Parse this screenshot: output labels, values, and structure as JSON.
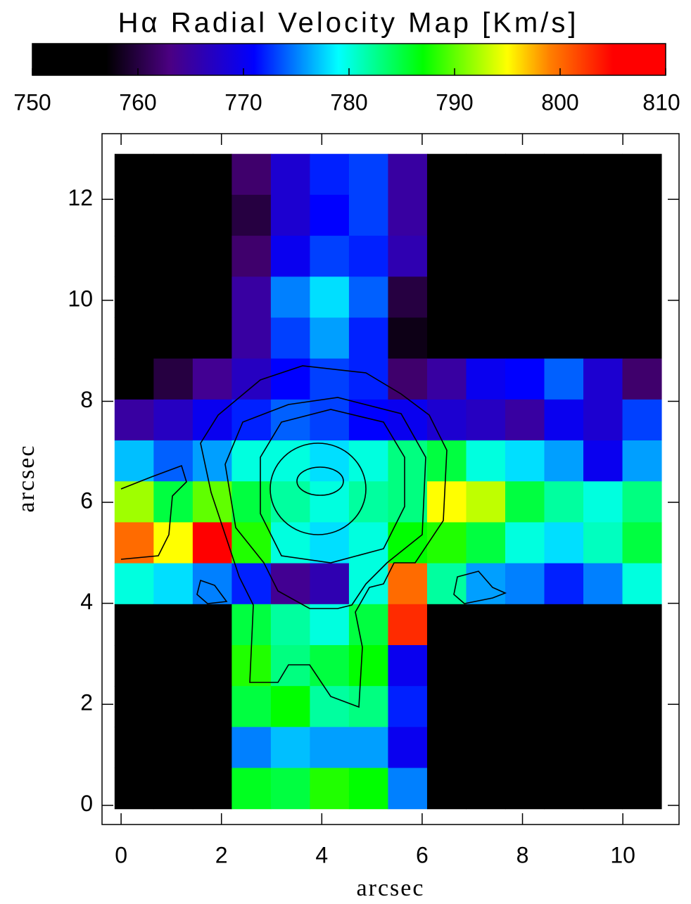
{
  "chart_data": {
    "type": "heatmap",
    "title": "Hα Radial Velocity Map [Km/s]",
    "xlabel": "arcsec",
    "ylabel": "arcsec",
    "xlim": [
      -0.38,
      11.12
    ],
    "ylim": [
      -0.38,
      13.3
    ],
    "xticks": [
      0,
      2,
      4,
      6,
      8,
      10
    ],
    "yticks": [
      0,
      2,
      4,
      6,
      8,
      10,
      12
    ],
    "x_range": [
      -0.13,
      10.77
    ],
    "y_range": [
      -0.07,
      12.9
    ],
    "clim": [
      750,
      810
    ],
    "cticks": [
      750,
      760,
      770,
      780,
      790,
      800,
      810
    ],
    "colorscale": [
      [
        750,
        "#000000"
      ],
      [
        757,
        "#000000"
      ],
      [
        763,
        "#4b0082"
      ],
      [
        771,
        "#0000ff"
      ],
      [
        779,
        "#00ffff"
      ],
      [
        787,
        "#00ff00"
      ],
      [
        795,
        "#ffff00"
      ],
      [
        799,
        "#ff8000"
      ],
      [
        805,
        "#ff0000"
      ],
      [
        810,
        "#ff0000"
      ]
    ],
    "z": [
      [
        752,
        752,
        752,
        762,
        768,
        772,
        773,
        765,
        752,
        752,
        752,
        752,
        752,
        752
      ],
      [
        752,
        752,
        752,
        760,
        768,
        771,
        773,
        765,
        752,
        752,
        752,
        752,
        752,
        752
      ],
      [
        752,
        752,
        752,
        762,
        770,
        773,
        772,
        766,
        752,
        752,
        752,
        752,
        752,
        752
      ],
      [
        752,
        752,
        752,
        765,
        775,
        778,
        774,
        760,
        752,
        752,
        752,
        752,
        752,
        752
      ],
      [
        752,
        752,
        752,
        765,
        773,
        776,
        772,
        758,
        754,
        752,
        752,
        752,
        752,
        752
      ],
      [
        755,
        760,
        764,
        767,
        771,
        773,
        772,
        762,
        765,
        770,
        771,
        774,
        768,
        762
      ],
      [
        765,
        767,
        770,
        772,
        774,
        773,
        771,
        770,
        768,
        767,
        765,
        770,
        768,
        773
      ],
      [
        777,
        774,
        776,
        780,
        780,
        778,
        780,
        783,
        785,
        780,
        778,
        776,
        770,
        776
      ],
      [
        792,
        785,
        790,
        785,
        782,
        780,
        782,
        783,
        795,
        793,
        785,
        782,
        780,
        783
      ],
      [
        800,
        795,
        805,
        788,
        780,
        778,
        780,
        787,
        788,
        785,
        780,
        778,
        781,
        785
      ],
      [
        780,
        778,
        775,
        772,
        764,
        766,
        780,
        800,
        782,
        776,
        775,
        772,
        775,
        780
      ],
      [
        753,
        754,
        756,
        785,
        782,
        780,
        785,
        803,
        755,
        756,
        755,
        754,
        755,
        754
      ],
      [
        752,
        753,
        755,
        788,
        783,
        785,
        787,
        770,
        752,
        752,
        752,
        752,
        752,
        752
      ],
      [
        752,
        753,
        754,
        785,
        787,
        782,
        783,
        772,
        752,
        752,
        752,
        752,
        752,
        752
      ],
      [
        752,
        752,
        753,
        775,
        777,
        776,
        776,
        770,
        752,
        752,
        752,
        752,
        752,
        752
      ],
      [
        752,
        752,
        755,
        786,
        785,
        788,
        787,
        775,
        752,
        752,
        752,
        752,
        752,
        752
      ]
    ]
  }
}
